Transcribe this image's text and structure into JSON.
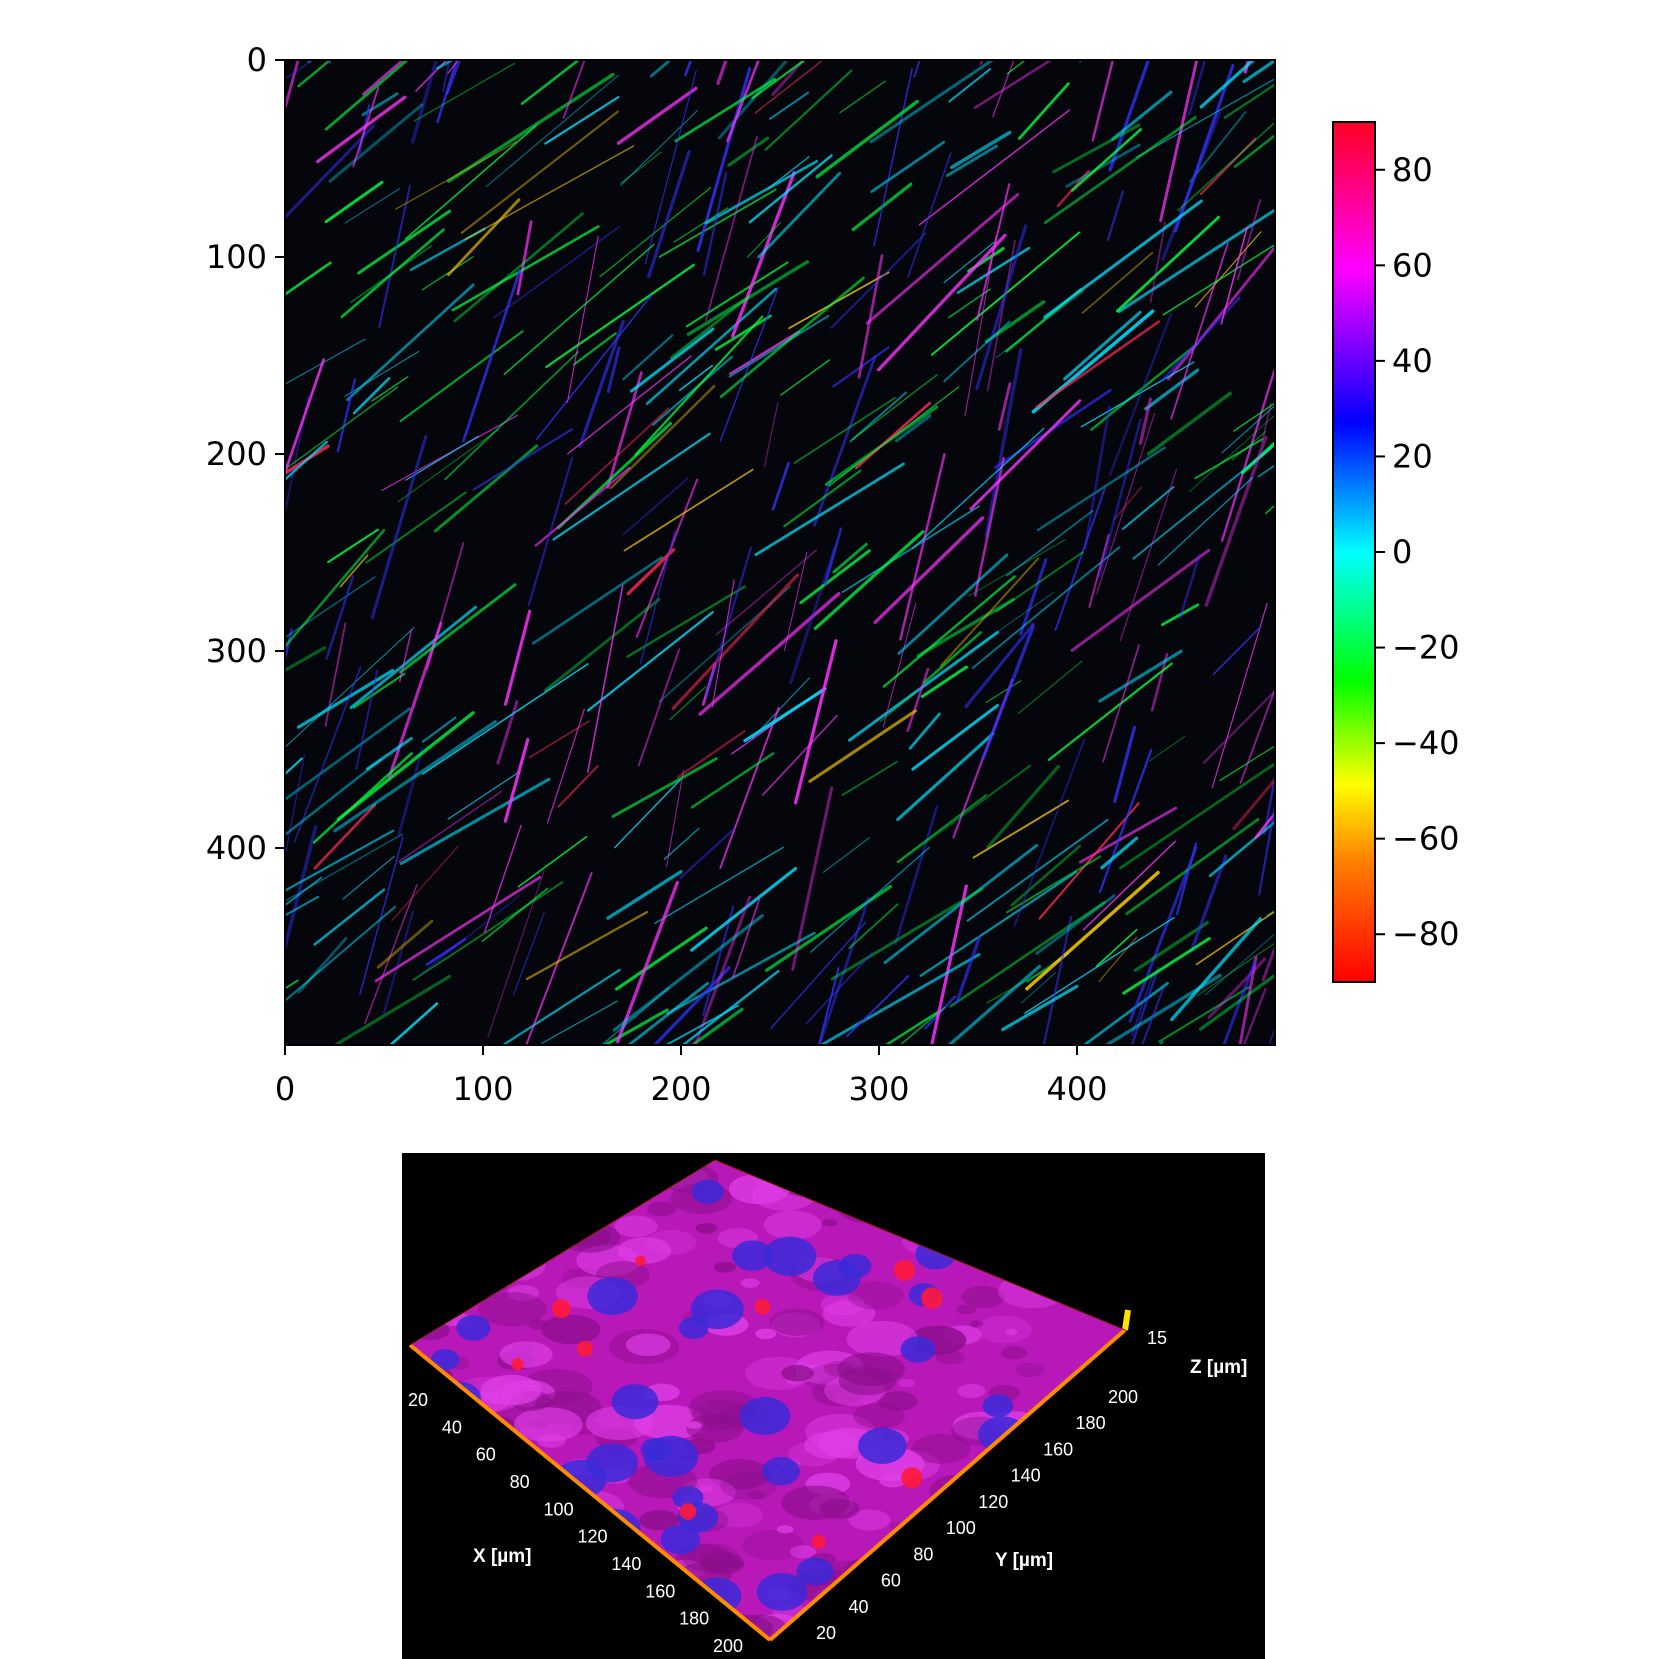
{
  "top_panel": {
    "image_desc_colors": [
      "#00e5ff",
      "#00ff44",
      "#ffd000",
      "#ff2a55",
      "#ff33ff",
      "#3333ff"
    ],
    "y_ticks": [
      "0",
      "100",
      "200",
      "300",
      "400"
    ],
    "x_ticks": [
      "0",
      "100",
      "200",
      "300",
      "400"
    ],
    "colorbar": {
      "ticks": [
        "80",
        "60",
        "40",
        "20",
        "0",
        "−20",
        "−40",
        "−60",
        "−80"
      ],
      "range": [
        -90,
        90
      ],
      "colors": [
        "#ff0000",
        "#ff7f00",
        "#ffff00",
        "#00ff00",
        "#00ffff",
        "#0000ff",
        "#ff00ff",
        "#ff0000"
      ]
    }
  },
  "bottom_panel": {
    "x_ticks": [
      "20",
      "40",
      "60",
      "80",
      "100",
      "120",
      "140",
      "160",
      "180",
      "200"
    ],
    "y_ticks": [
      "200",
      "180",
      "160",
      "140",
      "120",
      "100",
      "80",
      "60",
      "40",
      "20"
    ],
    "z_tick": "15",
    "x_label": "X [µm]",
    "y_label": "Y [µm]",
    "z_label": "Z [µm]",
    "surface_color": "#c81ec8",
    "nuclei_color": "#3a2ad8",
    "accent_color": "#ff8c00"
  }
}
